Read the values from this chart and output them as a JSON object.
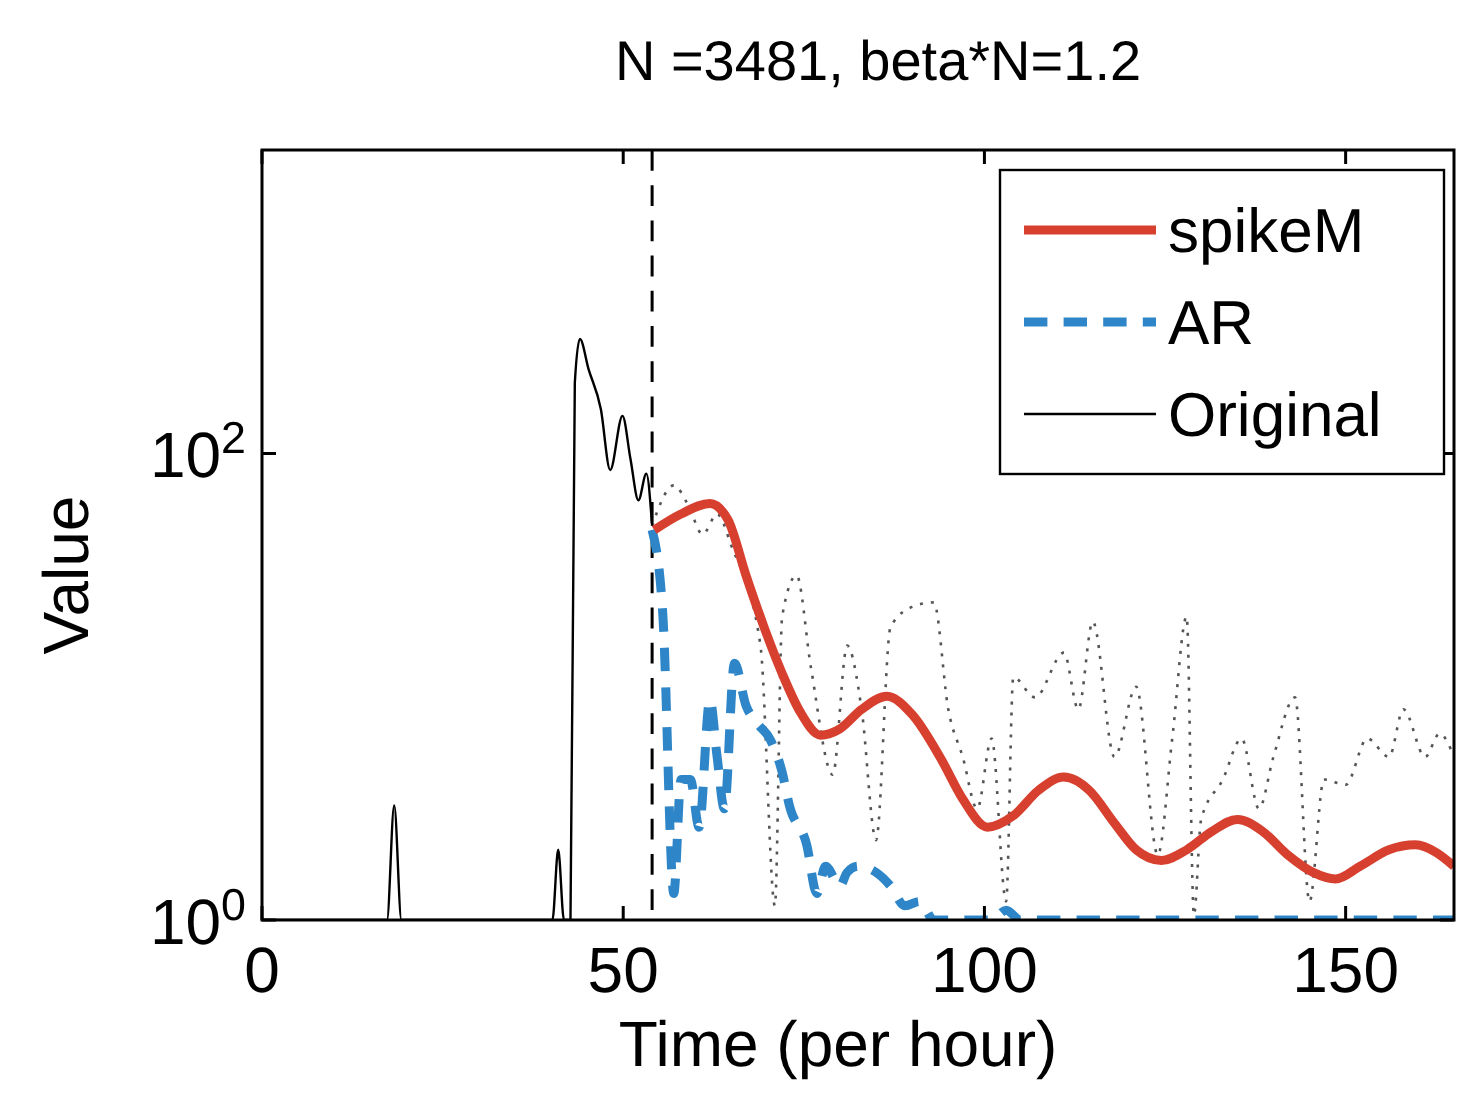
{
  "chart_data": {
    "type": "line",
    "title": "N =3481, beta*N=1.2",
    "xlabel": "Time (per hour)",
    "ylabel": "Value",
    "log": "y",
    "xlim": [
      0,
      165
    ],
    "xticks": [
      0,
      50,
      100,
      150
    ],
    "ylim": [
      1,
      2000
    ],
    "yticks": [
      {
        "value": 1,
        "label": "10$^{0}$"
      },
      {
        "value": 100,
        "label": "10$^{2}$"
      }
    ],
    "legend": "top right",
    "ref_lines": [
      {
        "axis": "x",
        "value": 54,
        "color": "#000000",
        "line_style": "dashed"
      }
    ],
    "series": [
      {
        "name": "spikeM",
        "color": "#d7402f",
        "line_style": "solid",
        "x": [
          54.3,
          58,
          62,
          64.5,
          67,
          69.5,
          72,
          74.5,
          77.3,
          80,
          83,
          86.5,
          90,
          94,
          97,
          100.4,
          104,
          107.5,
          111,
          114.5,
          118,
          121,
          124.5,
          128,
          131.5,
          135,
          138.5,
          142,
          145.5,
          148.6,
          152,
          156,
          159.7,
          162.5,
          165
        ],
        "values": [
          47,
          55,
          61,
          52,
          30,
          18,
          11.4,
          7.8,
          6.2,
          6.6,
          8,
          9.1,
          7.6,
          4.9,
          3.3,
          2.5,
          2.8,
          3.6,
          4.1,
          3.6,
          2.6,
          2,
          1.8,
          2,
          2.4,
          2.7,
          2.4,
          1.9,
          1.6,
          1.5,
          1.7,
          2,
          2.1,
          1.95,
          1.7
        ]
      },
      {
        "name": "AR",
        "color": "#2e86c8",
        "line_style": "dashed",
        "x": [
          54,
          55.5,
          57,
          58,
          59.3,
          60.5,
          62,
          63,
          64,
          65.4,
          67,
          68.5,
          70.4,
          72,
          73,
          75.4,
          76.8,
          78,
          80,
          81,
          82.5,
          85,
          87,
          89,
          91,
          93,
          97,
          101,
          103,
          105,
          110,
          120,
          130,
          140,
          150,
          160,
          165
        ],
        "values": [
          47,
          20,
          1.3,
          4,
          4,
          2.5,
          8.8,
          5,
          3,
          12.6,
          8.3,
          7,
          5.9,
          4.3,
          3.1,
          2.1,
          1.3,
          1.7,
          1.4,
          1.6,
          1.7,
          1.6,
          1.4,
          1.15,
          1.2,
          1,
          1,
          1,
          1.1,
          1,
          1,
          1,
          1,
          1,
          1,
          1,
          1
        ]
      },
      {
        "name": "Original",
        "color": "#000000",
        "line_style": "solid",
        "x": [
          0,
          17.3,
          18.3,
          19.3,
          40.2,
          41,
          41.8,
          42.7,
          43.3,
          44,
          45.2,
          46.9,
          48.2,
          49.9,
          51,
          52.1,
          53.2,
          54
        ],
        "values": [
          1,
          1,
          3.1,
          1,
          1,
          2,
          1,
          1,
          200,
          310,
          230,
          155,
          85,
          145,
          95,
          63,
          82,
          49
        ]
      },
      {
        "color": "#555555",
        "line_style": "dotted",
        "x": [
          54,
          57,
          59,
          61,
          63,
          65,
          69,
          71,
          72,
          74,
          76,
          79,
          81,
          83,
          85,
          87,
          90,
          93,
          95,
          97,
          99,
          101,
          103,
          104,
          107,
          111,
          113,
          115,
          118,
          121,
          124,
          126,
          128,
          129,
          130,
          133,
          135.6,
          138,
          140,
          143,
          145,
          147,
          150,
          153,
          156,
          158,
          161,
          163,
          165
        ],
        "values": [
          49,
          73,
          60,
          45,
          55,
          40,
          15,
          1.15,
          20,
          30,
          12,
          4.2,
          15,
          8,
          2.2,
          18,
          22,
          23,
          8,
          5,
          3,
          6,
          1.2,
          11,
          9,
          14,
          8,
          19,
          5,
          10,
          1.9,
          6,
          20,
          1.05,
          2.7,
          4,
          6,
          3,
          5,
          9,
          1.2,
          4,
          3.8,
          6,
          5,
          8,
          5,
          6.3,
          5
        ]
      }
    ]
  }
}
